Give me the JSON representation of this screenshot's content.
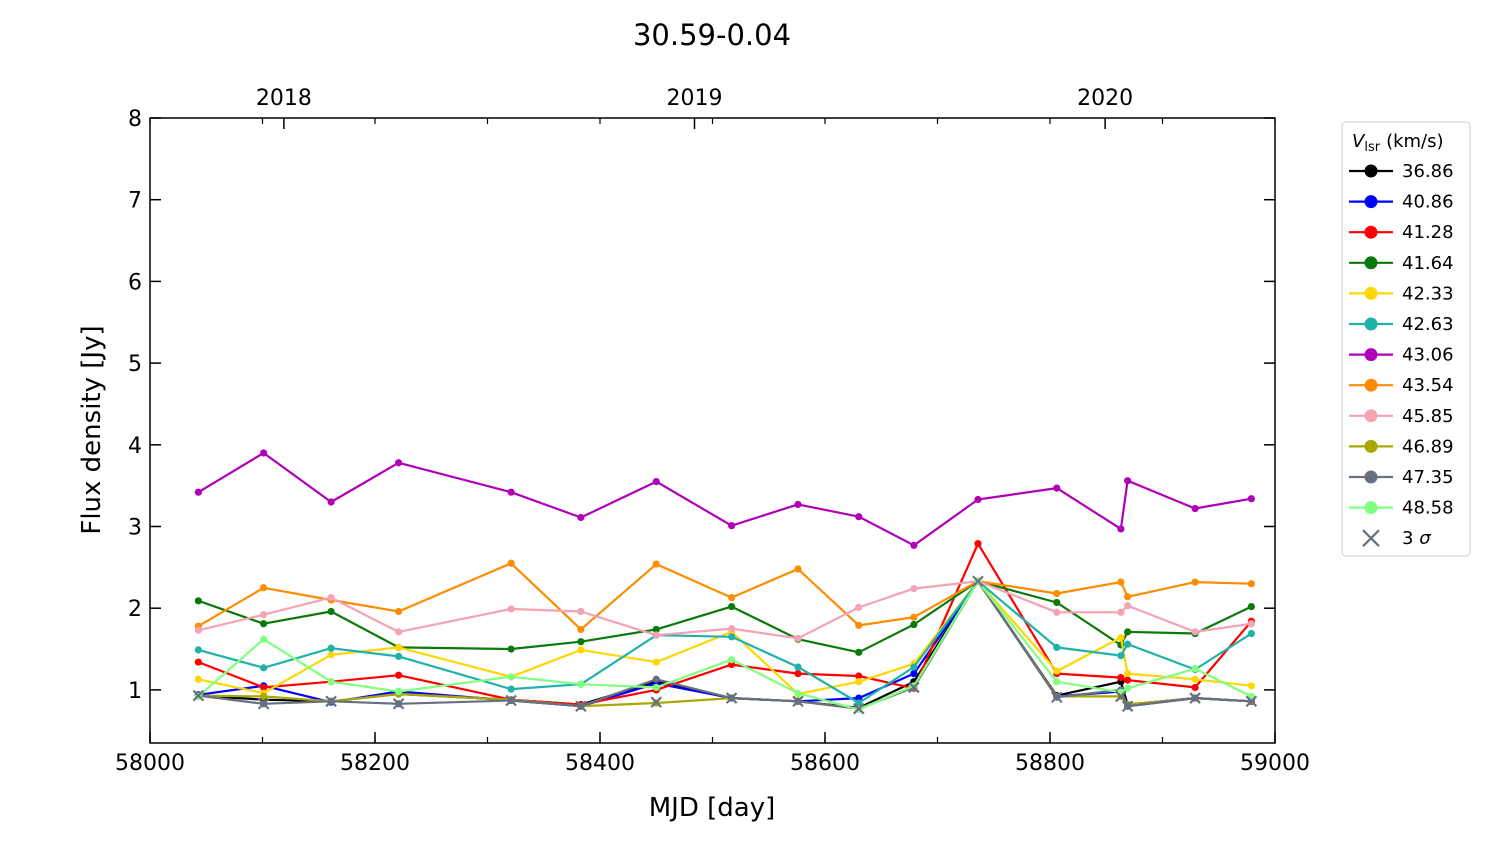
{
  "chart_data": {
    "type": "line",
    "title": "30.59-0.04",
    "xlabel": "MJD [day]",
    "ylabel": "Flux density [Jy]",
    "xlim": [
      58000,
      59000
    ],
    "ylim": [
      0.35,
      8
    ],
    "x_ticks": [
      {
        "value": 58000,
        "label": "58000"
      },
      {
        "value": 58200,
        "label": "58200"
      },
      {
        "value": 58400,
        "label": "58400"
      },
      {
        "value": 58600,
        "label": "58600"
      },
      {
        "value": 58800,
        "label": "58800"
      },
      {
        "value": 59000,
        "label": "59000"
      }
    ],
    "y_ticks": [
      {
        "value": 1,
        "label": "1"
      },
      {
        "value": 2,
        "label": "2"
      },
      {
        "value": 3,
        "label": "3"
      },
      {
        "value": 4,
        "label": "4"
      },
      {
        "value": 5,
        "label": "5"
      },
      {
        "value": 6,
        "label": "6"
      },
      {
        "value": 7,
        "label": "7"
      },
      {
        "value": 8,
        "label": "8"
      }
    ],
    "top_axis_ticks": [
      {
        "value": 58119,
        "label": "2018"
      },
      {
        "value": 58484,
        "label": "2019"
      },
      {
        "value": 58849,
        "label": "2020"
      }
    ],
    "grid": false,
    "legend": {
      "placement": "outside-right",
      "title_symbol": "V",
      "title_subscript": "lsr",
      "title_unit": "(km/s)",
      "sigma_label_prefix": "3",
      "sigma_label_symbol": "σ"
    },
    "x": [
      58043,
      58101,
      58161,
      58221,
      58321,
      58383,
      58450,
      58517,
      58576,
      58630,
      58679,
      58736,
      58806,
      58863,
      58869,
      58929,
      58979
    ],
    "series": [
      {
        "name": "36.86",
        "color": "#000000",
        "values": [
          0.93,
          0.88,
          0.86,
          0.95,
          0.88,
          0.82,
          1.1,
          0.9,
          0.86,
          0.78,
          1.1,
          2.33,
          0.93,
          1.1,
          0.82,
          0.9,
          0.86
        ]
      },
      {
        "name": "40.86",
        "color": "#0000ff",
        "values": [
          0.94,
          1.05,
          0.85,
          0.98,
          0.87,
          0.8,
          1.08,
          0.9,
          0.86,
          0.9,
          1.2,
          2.33,
          0.92,
          0.98,
          0.8,
          0.9,
          0.86
        ]
      },
      {
        "name": "41.28",
        "color": "#ff0000",
        "values": [
          1.34,
          1.03,
          1.1,
          1.18,
          0.88,
          0.82,
          1.0,
          1.31,
          1.2,
          1.17,
          1.02,
          2.79,
          1.2,
          1.15,
          1.12,
          1.03,
          1.84
        ]
      },
      {
        "name": "41.64",
        "color": "#0b7a0b",
        "values": [
          2.09,
          1.81,
          1.96,
          1.52,
          1.5,
          1.59,
          1.74,
          2.02,
          1.62,
          1.46,
          1.8,
          2.33,
          2.07,
          1.55,
          1.71,
          1.69,
          2.02
        ]
      },
      {
        "name": "42.33",
        "color": "#ffd700",
        "values": [
          1.13,
          0.96,
          1.43,
          1.52,
          1.16,
          1.49,
          1.34,
          1.71,
          0.95,
          1.1,
          1.32,
          2.33,
          1.23,
          1.64,
          1.2,
          1.13,
          1.05
        ]
      },
      {
        "name": "42.63",
        "color": "#20b2aa",
        "values": [
          1.49,
          1.27,
          1.51,
          1.41,
          1.01,
          1.07,
          1.67,
          1.65,
          1.28,
          0.84,
          1.28,
          2.33,
          1.52,
          1.42,
          1.56,
          1.25,
          1.69
        ]
      },
      {
        "name": "43.06",
        "color": "#b000b8",
        "values": [
          3.42,
          3.9,
          3.3,
          3.78,
          3.42,
          3.11,
          3.55,
          3.01,
          3.27,
          3.12,
          2.77,
          3.33,
          3.47,
          2.97,
          3.56,
          3.22,
          3.34
        ]
      },
      {
        "name": "43.54",
        "color": "#ff8c00",
        "values": [
          1.78,
          2.25,
          2.1,
          1.96,
          2.55,
          1.74,
          2.54,
          2.13,
          2.48,
          1.79,
          1.89,
          2.33,
          2.18,
          2.32,
          2.14,
          2.32,
          2.3
        ]
      },
      {
        "name": "45.85",
        "color": "#f4a3b4",
        "values": [
          1.73,
          1.92,
          2.13,
          1.71,
          1.99,
          1.96,
          1.67,
          1.75,
          1.63,
          2.01,
          2.24,
          2.33,
          1.95,
          1.95,
          2.03,
          1.71,
          1.81
        ]
      },
      {
        "name": "46.89",
        "color": "#a8a800",
        "values": [
          0.93,
          0.92,
          0.86,
          0.95,
          0.88,
          0.8,
          0.84,
          0.9,
          0.86,
          0.77,
          1.03,
          2.33,
          0.92,
          0.92,
          0.82,
          0.9,
          0.86
        ]
      },
      {
        "name": "47.35",
        "color": "#667080",
        "values": [
          0.93,
          0.83,
          0.86,
          0.83,
          0.87,
          0.8,
          1.13,
          0.9,
          0.86,
          0.77,
          1.03,
          2.33,
          0.91,
          1.0,
          0.8,
          0.9,
          0.86
        ]
      },
      {
        "name": "48.58",
        "color": "#80ff80",
        "values": [
          0.92,
          1.62,
          1.1,
          0.98,
          1.16,
          1.07,
          1.03,
          1.37,
          0.96,
          0.76,
          1.05,
          2.33,
          1.1,
          0.97,
          1.02,
          1.26,
          0.92
        ]
      }
    ],
    "three_sigma": {
      "color": "#667080",
      "values": [
        0.93,
        0.83,
        0.86,
        0.83,
        0.87,
        0.8,
        0.85,
        0.9,
        0.86,
        0.77,
        1.03,
        2.33,
        0.91,
        0.92,
        0.8,
        0.9,
        0.86
      ]
    }
  }
}
